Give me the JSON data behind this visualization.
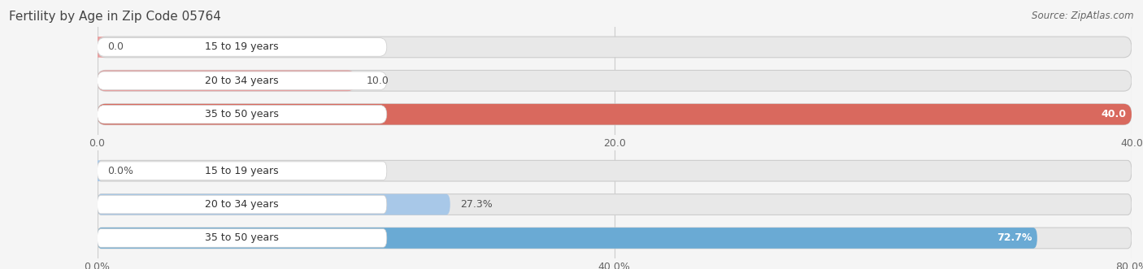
{
  "title": "Fertility by Age in Zip Code 05764",
  "source": "Source: ZipAtlas.com",
  "top_chart": {
    "categories": [
      "15 to 19 years",
      "20 to 34 years",
      "35 to 50 years"
    ],
    "values": [
      0.0,
      10.0,
      40.0
    ],
    "xlim": [
      0,
      40
    ],
    "xticks": [
      0.0,
      20.0,
      40.0
    ],
    "bar_color_light": "#e8a0a0",
    "bar_color_dark": "#d9695e",
    "dark_threshold": 35.0,
    "value_labels": [
      "0.0",
      "10.0",
      "40.0"
    ]
  },
  "bottom_chart": {
    "categories": [
      "15 to 19 years",
      "20 to 34 years",
      "35 to 50 years"
    ],
    "values": [
      0.0,
      27.3,
      72.7
    ],
    "xlim": [
      0,
      80
    ],
    "xticks": [
      0.0,
      40.0,
      80.0
    ],
    "xtick_labels": [
      "0.0%",
      "40.0%",
      "80.0%"
    ],
    "bar_color_light": "#a8c8e8",
    "bar_color_dark": "#6aaad4",
    "dark_threshold": 65.0,
    "value_labels": [
      "0.0%",
      "27.3%",
      "72.7%"
    ]
  },
  "label_color": "#666666",
  "title_color": "#444444",
  "bg_color": "#f5f5f5",
  "bar_bg_color": "#e8e8e8",
  "white_label_box_color": "#ffffff",
  "bar_height": 0.62,
  "label_fontsize": 9,
  "title_fontsize": 11,
  "source_fontsize": 8.5
}
